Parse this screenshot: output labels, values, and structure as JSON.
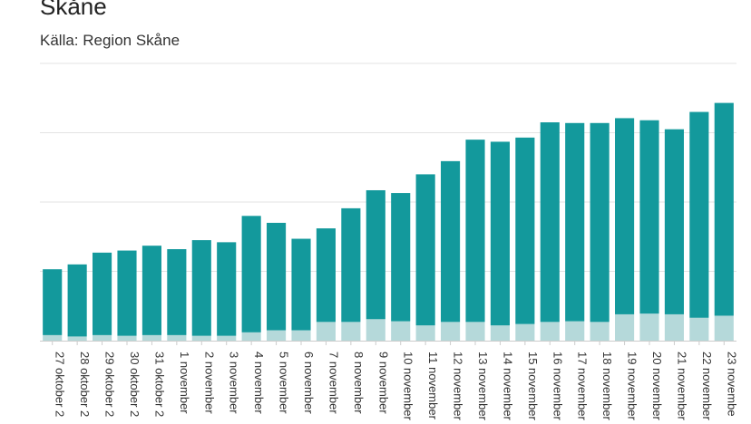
{
  "title": "Skåne",
  "subtitle": "Källa: Region Skåne",
  "colors": {
    "main_bar": "#13999c",
    "base_bar": "#b5d9da",
    "grid": "#e3e3e3",
    "axis": "#cccccc"
  },
  "chart_data": {
    "type": "bar",
    "stacked": true,
    "categories": [
      "27 oktober 2",
      "28 oktober 2",
      "29 oktober 2",
      "30 oktober 2",
      "31 oktober 2",
      "1 november",
      "2 november",
      "3 november",
      "4 november",
      "5 november",
      "6 november",
      "7 november",
      "8 november",
      "9 november",
      "10 november",
      "11 november",
      "12 november",
      "13 november",
      "14 november",
      "15 november",
      "16 november",
      "17 november",
      "18 november",
      "19 november",
      "20 november",
      "21 november",
      "22 november",
      "23 novembe"
    ],
    "series": [
      {
        "values": [
          8,
          6,
          8,
          7,
          8,
          8,
          7,
          7,
          12,
          15,
          15,
          27,
          27,
          31,
          28,
          22,
          27,
          27,
          22,
          24,
          27,
          28,
          27,
          38,
          39,
          38,
          33,
          36
        ]
      },
      {
        "values": [
          95,
          104,
          119,
          123,
          129,
          124,
          138,
          135,
          168,
          155,
          132,
          135,
          164,
          186,
          185,
          218,
          232,
          263,
          265,
          269,
          288,
          286,
          287,
          283,
          279,
          267,
          297,
          307
        ]
      }
    ],
    "ylim": [
      0,
      400
    ],
    "gridlines": [
      0,
      100,
      200,
      300,
      400
    ],
    "grid": true,
    "legend": "none"
  }
}
